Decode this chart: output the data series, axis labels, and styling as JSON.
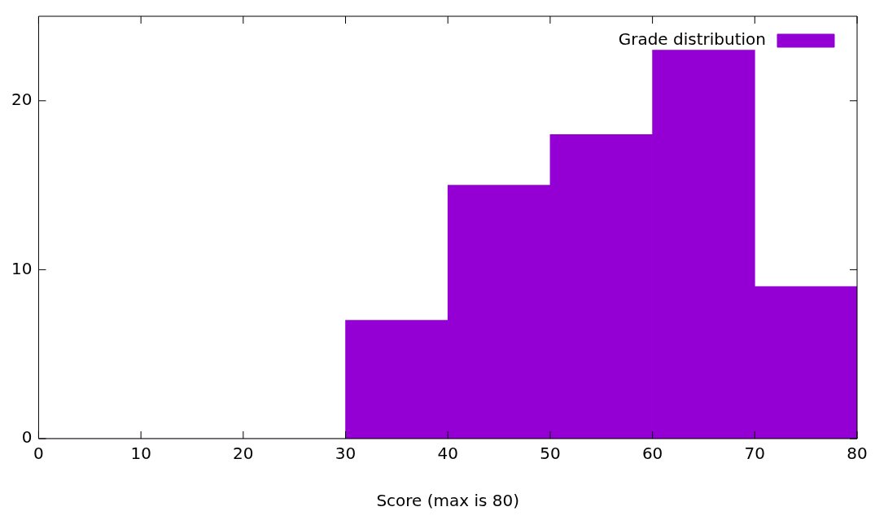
{
  "chart_data": {
    "type": "histogram",
    "xlabel": "Score (max is 80)",
    "bins": [
      0,
      10,
      20,
      30,
      40,
      50,
      60,
      70,
      80
    ],
    "series": [
      {
        "name": "Grade distribution",
        "color": "#9400d3",
        "values": [
          0,
          0,
          0,
          7,
          15,
          18,
          23,
          9
        ]
      }
    ],
    "xlim": [
      0,
      80
    ],
    "xticks": [
      0,
      10,
      20,
      30,
      40,
      50,
      60,
      70,
      80
    ],
    "ylim": [
      0,
      25
    ],
    "yticks": [
      0,
      10,
      20
    ],
    "grid": false,
    "legend": "top right"
  }
}
